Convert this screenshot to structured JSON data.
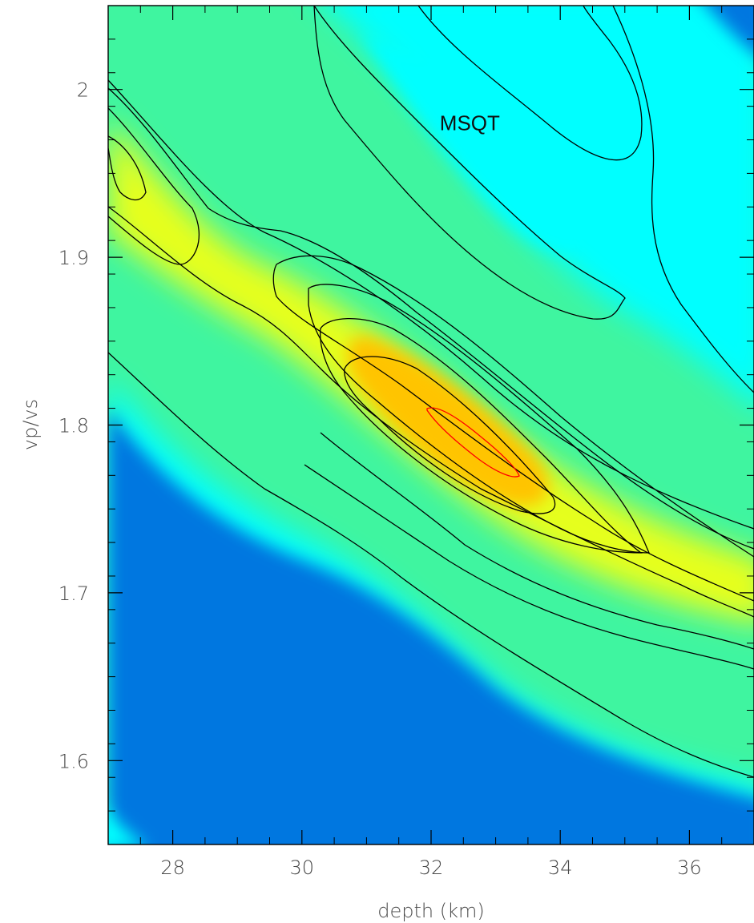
{
  "chart_data": {
    "type": "heatmap",
    "title": "",
    "xlabel": "depth (km)",
    "ylabel": "vp/vs",
    "xlim": [
      27,
      37
    ],
    "ylim": [
      1.55,
      2.05
    ],
    "x_ticks": [
      28,
      30,
      32,
      34,
      36
    ],
    "x_tick_labels": [
      "28",
      "30",
      "32",
      "34",
      "36"
    ],
    "y_ticks": [
      1.6,
      1.7,
      1.8,
      1.9,
      2.0
    ],
    "y_tick_labels": [
      "1.6",
      "1.7",
      "1.8",
      "1.9",
      "2"
    ],
    "grid": false,
    "legend": "none",
    "colormap": [
      "#0077e0",
      "#00ffff",
      "#3ff5a0",
      "#a8f23a",
      "#e6ff1a",
      "#ffe600",
      "#ffc400"
    ],
    "annotations": [
      {
        "text": "MSQT",
        "x": 32.6,
        "y": 1.98
      }
    ],
    "maximum": {
      "depth": 32.6,
      "vpvs": 1.79,
      "contour_color": "#ff0000"
    },
    "contour_color": "#000000"
  }
}
